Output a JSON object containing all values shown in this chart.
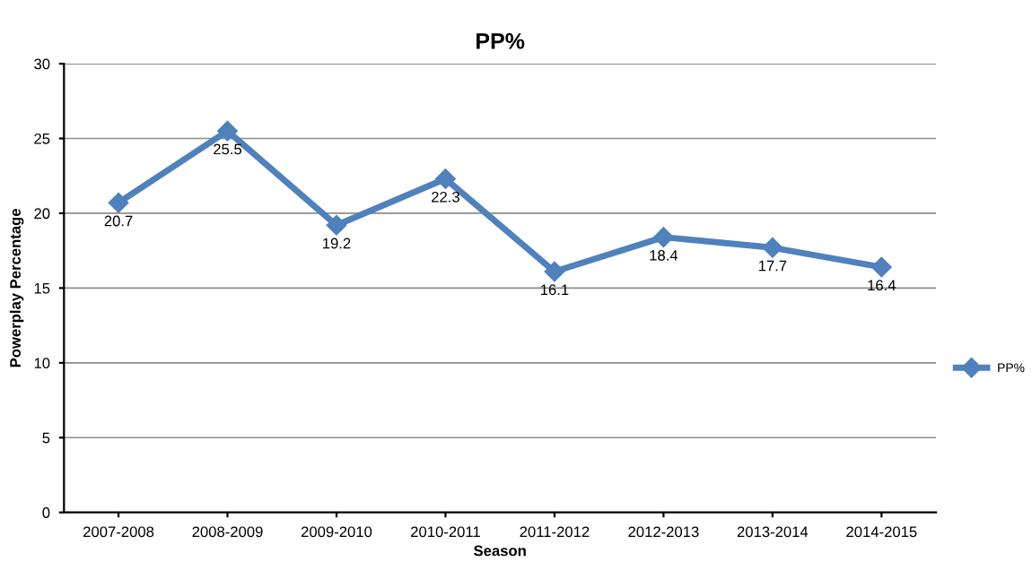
{
  "chart_data": {
    "type": "line",
    "title": "PP%",
    "xlabel": "Season",
    "ylabel": "Powerplay Percentage",
    "categories": [
      "2007-2008",
      "2008-2009",
      "2009-2010",
      "2010-2011",
      "2011-2012",
      "2012-2013",
      "2013-2014",
      "2014-2015"
    ],
    "series": [
      {
        "name": "PP%",
        "color": "#4f81bd",
        "values": [
          20.7,
          25.5,
          19.2,
          22.3,
          16.1,
          18.4,
          17.7,
          16.4
        ]
      }
    ],
    "ylim": [
      0,
      30
    ],
    "yticks": [
      0,
      5,
      10,
      15,
      20,
      25,
      30
    ],
    "grid": "y",
    "legend": "right",
    "marker": "diamond",
    "line_style": "solid",
    "data_labels": true
  }
}
